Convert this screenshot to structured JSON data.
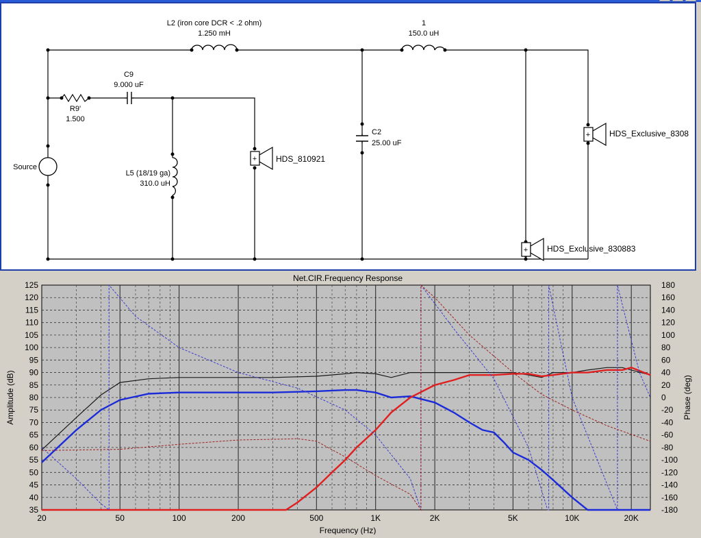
{
  "schematic": {
    "components": {
      "l2": {
        "name": "L2 (iron core DCR < .2 ohm)",
        "value": "1.250 mH"
      },
      "l1": {
        "name": "1",
        "value": "150.0 uH"
      },
      "c9": {
        "name": "C9",
        "value": "9.000 uF"
      },
      "r9": {
        "name": "R9'",
        "value": "1.500"
      },
      "l5": {
        "name": "L5 (18/19 ga)",
        "value": "310.0 uH"
      },
      "c2": {
        "name": "C2",
        "value": "25.00 uF"
      },
      "source": {
        "name": "Source"
      },
      "driver_woofer": {
        "name": "HDS_810921",
        "polarity": "+"
      },
      "driver_upper": {
        "name": "HDS_Exclusive_8308",
        "polarity": "+"
      },
      "driver_lower": {
        "name": "HDS_Exclusive_830883",
        "polarity": "+"
      }
    }
  },
  "graph": {
    "title": "Net.CIR.Frequency Response",
    "xlabel": "Frequency (Hz)",
    "ylabel_left": "Amplitude (dB)",
    "ylabel_right": "Phase (deg)",
    "x_tick_labels": [
      "20",
      "50",
      "100",
      "200",
      "500",
      "1K",
      "2K",
      "5K",
      "10K",
      "20K"
    ],
    "y_tick_labels": [
      "125",
      "120",
      "115",
      "110",
      "105",
      "100",
      "95",
      "90",
      "85",
      "80",
      "75",
      "70",
      "65",
      "60",
      "55",
      "50",
      "45",
      "40",
      "35"
    ],
    "phase_tick_labels": [
      "180",
      "160",
      "140",
      "120",
      "100",
      "80",
      "60",
      "40",
      "20",
      "0",
      "-20",
      "-40",
      "-60",
      "-80",
      "-100",
      "-120",
      "-140",
      "-160",
      "-180"
    ]
  },
  "chart_data": {
    "type": "line",
    "title": "Net.CIR.Frequency Response",
    "xlabel": "Frequency (Hz)",
    "ylabel": "Amplitude (dB)",
    "y2label": "Phase (deg)",
    "xscale": "log",
    "xlim": [
      20,
      25000
    ],
    "ylim": [
      35,
      125
    ],
    "y2lim": [
      -180,
      180
    ],
    "grid": true,
    "colors": {
      "total": "#1a1a1a",
      "woofer": "#1c2bd8",
      "tweeter": "#e02020",
      "woofer_phase": "#3b3bd0",
      "tweeter_phase": "#a02020",
      "plot_bg": "#c0c0c0"
    },
    "series": [
      {
        "axis": "amplitude",
        "color_key": "total",
        "x": [
          20,
          30,
          40,
          50,
          70,
          100,
          150,
          200,
          300,
          500,
          700,
          800,
          1000,
          1200,
          1500,
          2000,
          3000,
          4000,
          5000,
          6000,
          7000,
          8000,
          10000,
          12000,
          15000,
          18000,
          20000,
          25000
        ],
        "y": [
          59,
          72,
          81,
          86,
          87.5,
          88,
          88,
          88,
          88,
          88.5,
          89.5,
          90,
          89.5,
          88,
          90,
          90,
          90,
          90,
          90,
          89,
          88,
          90,
          90,
          91,
          92,
          92,
          91,
          89
        ]
      },
      {
        "axis": "amplitude",
        "color_key": "woofer",
        "x": [
          20,
          30,
          40,
          50,
          70,
          100,
          150,
          200,
          300,
          500,
          700,
          800,
          1000,
          1200,
          1500,
          2000,
          2500,
          3000,
          3500,
          4000,
          4500,
          5000,
          6000,
          7000,
          8000,
          10000,
          12000,
          25000
        ],
        "y": [
          54,
          67,
          75,
          79,
          81.5,
          82,
          82,
          82,
          82,
          82.5,
          83,
          83,
          82,
          80,
          80.5,
          78,
          74,
          70,
          67,
          66,
          62,
          58,
          55,
          51,
          47,
          40,
          35,
          35
        ]
      },
      {
        "axis": "amplitude",
        "color_key": "tweeter",
        "x": [
          20,
          100,
          200,
          300,
          350,
          400,
          500,
          600,
          700,
          800,
          1000,
          1200,
          1500,
          2000,
          2500,
          3000,
          4000,
          5000,
          6000,
          7000,
          8000,
          10000,
          12000,
          15000,
          18000,
          20000,
          25000
        ],
        "y": [
          35,
          35,
          35,
          35,
          35,
          38,
          44,
          50,
          55,
          60,
          67,
          74,
          80,
          85,
          87,
          89,
          89,
          89.5,
          89.5,
          88.5,
          89,
          90,
          90,
          91,
          91,
          92,
          89
        ]
      },
      {
        "axis": "phase",
        "color_key": "woofer_phase",
        "x": [
          20,
          30,
          40,
          44,
          44.01,
          60,
          100,
          200,
          400,
          700,
          1000,
          1500,
          1700,
          1700.1,
          2500,
          4000,
          6000,
          7500,
          7600,
          7600.1,
          10000,
          17000,
          17000.1,
          22000,
          25000
        ],
        "y": [
          -80,
          -130,
          -170,
          -180,
          180,
          130,
          80,
          40,
          15,
          -20,
          -60,
          -130,
          -180,
          180,
          110,
          30,
          -80,
          -180,
          -180,
          180,
          0,
          -180,
          180,
          40,
          0
        ]
      },
      {
        "axis": "phase",
        "color_key": "tweeter_phase",
        "x": [
          20,
          50,
          100,
          200,
          300,
          400,
          500,
          700,
          1000,
          1500,
          1700,
          1700.1,
          2000,
          3000,
          5000,
          7000,
          10000,
          15000,
          25000
        ],
        "y": [
          -85,
          -83,
          -75,
          -68,
          -67,
          -66,
          -70,
          -95,
          -125,
          -155,
          -180,
          180,
          160,
          100,
          40,
          5,
          -20,
          -45,
          -70
        ]
      }
    ]
  }
}
